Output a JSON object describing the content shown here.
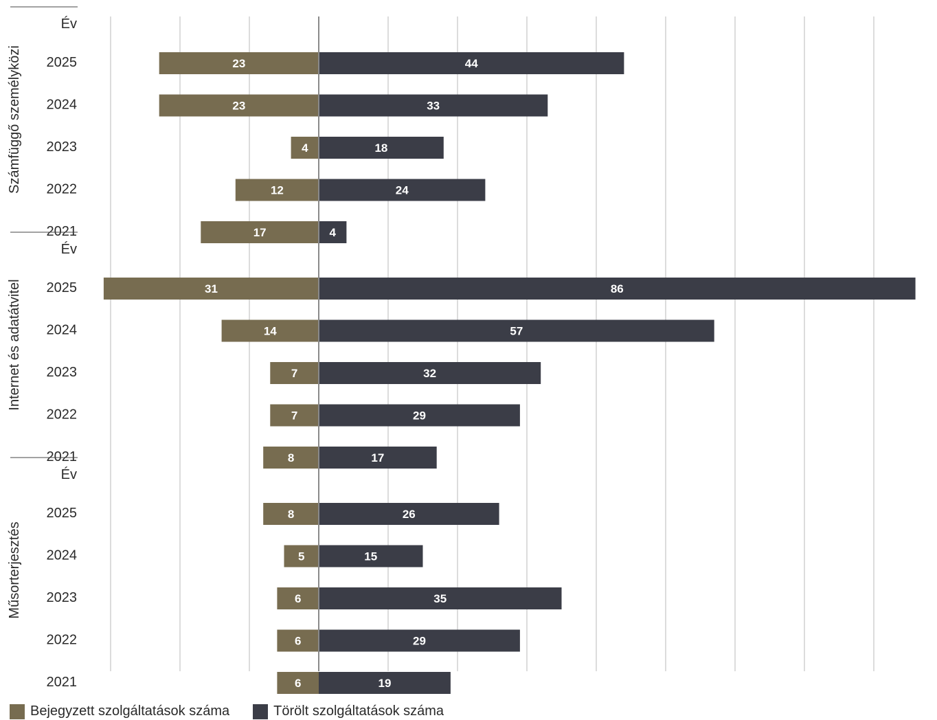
{
  "chart_data": {
    "type": "bar",
    "orientation": "horizontal-diverging",
    "grid": true,
    "legend_position": "bottom-left",
    "groups": [
      {
        "name": "Számfüggő személyközi",
        "header_label": "Év",
        "categories": [
          "2025",
          "2024",
          "2023",
          "2022",
          "2021"
        ],
        "series": [
          {
            "name": "Bejegyzett szolgáltatások száma",
            "values": [
              23,
              23,
              4,
              12,
              17
            ]
          },
          {
            "name": "Törölt szolgáltatások száma",
            "values": [
              44,
              33,
              18,
              24,
              4
            ]
          }
        ]
      },
      {
        "name": "Internet és adatátvitel",
        "header_label": "Év",
        "categories": [
          "2025",
          "2024",
          "2023",
          "2022",
          "2021"
        ],
        "series": [
          {
            "name": "Bejegyzett szolgáltatások száma",
            "values": [
              31,
              14,
              7,
              7,
              8
            ]
          },
          {
            "name": "Törölt szolgáltatások száma",
            "values": [
              86,
              57,
              32,
              29,
              17
            ]
          }
        ]
      },
      {
        "name": "Műsorterjesztés",
        "header_label": "Év",
        "categories": [
          "2025",
          "2024",
          "2023",
          "2022",
          "2021"
        ],
        "series": [
          {
            "name": "Bejegyzett szolgáltatások száma",
            "values": [
              8,
              5,
              6,
              6,
              6
            ]
          },
          {
            "name": "Törölt szolgáltatások száma",
            "values": [
              26,
              15,
              35,
              29,
              19
            ]
          }
        ]
      }
    ]
  },
  "colors": {
    "bejegyzett": "#776c50",
    "torolt": "#3b3d47",
    "grid": "#b8b8b8",
    "axis": "#8a8a8a",
    "text": "#2a2a2a",
    "bar_label": "#ffffff"
  },
  "legend": {
    "items": [
      {
        "label": "Bejegyzett szolgáltatások száma"
      },
      {
        "label": "Törölt szolgáltatások száma"
      }
    ]
  }
}
